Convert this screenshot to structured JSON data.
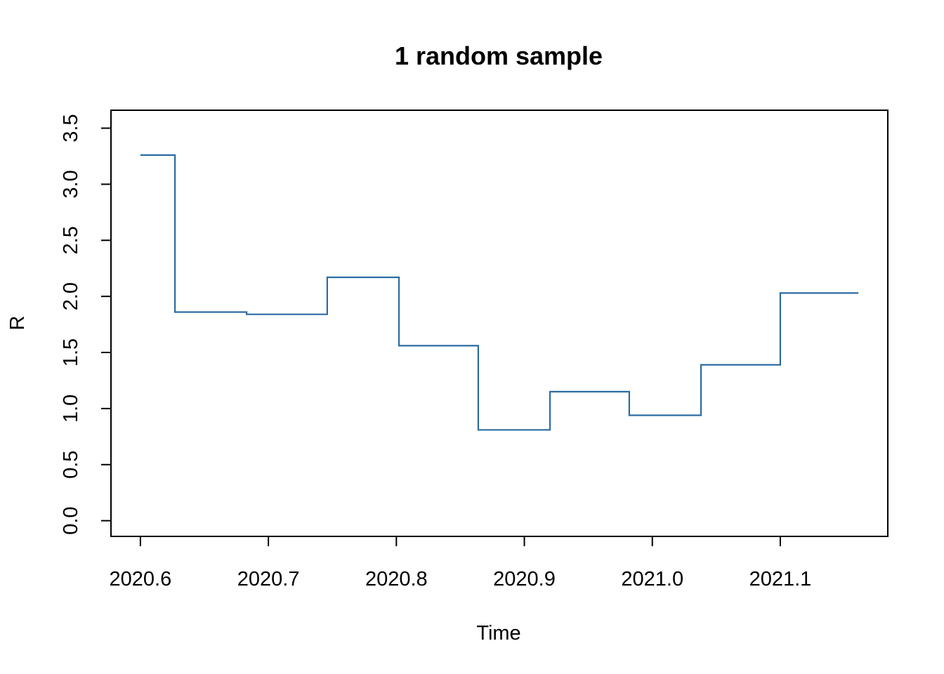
{
  "chart_data": {
    "type": "line",
    "style": "step",
    "title": "1 random sample",
    "xlabel": "Time",
    "ylabel": "R",
    "xlim": [
      2020.577,
      2021.184
    ],
    "ylim": [
      -0.14,
      3.66
    ],
    "xticks": [
      "2020.6",
      "2020.7",
      "2020.8",
      "2020.9",
      "2021.0",
      "2021.1"
    ],
    "yticks": [
      "0.0",
      "0.5",
      "1.0",
      "1.5",
      "2.0",
      "2.5",
      "3.0",
      "3.5"
    ],
    "color": "#2b6ca3",
    "series": [
      {
        "segments": [
          {
            "x0": 2020.6,
            "x1": 2020.627,
            "y": 3.26
          },
          {
            "x0": 2020.627,
            "x1": 2020.683,
            "y": 1.86
          },
          {
            "x0": 2020.683,
            "x1": 2020.746,
            "y": 1.84
          },
          {
            "x0": 2020.746,
            "x1": 2020.802,
            "y": 2.17
          },
          {
            "x0": 2020.802,
            "x1": 2020.864,
            "y": 1.56
          },
          {
            "x0": 2020.864,
            "x1": 2020.92,
            "y": 0.81
          },
          {
            "x0": 2020.92,
            "x1": 2020.982,
            "y": 1.15
          },
          {
            "x0": 2020.982,
            "x1": 2021.038,
            "y": 0.94
          },
          {
            "x0": 2021.038,
            "x1": 2021.1,
            "y": 1.39
          },
          {
            "x0": 2021.1,
            "x1": 2021.161,
            "y": 2.03
          }
        ]
      }
    ]
  }
}
